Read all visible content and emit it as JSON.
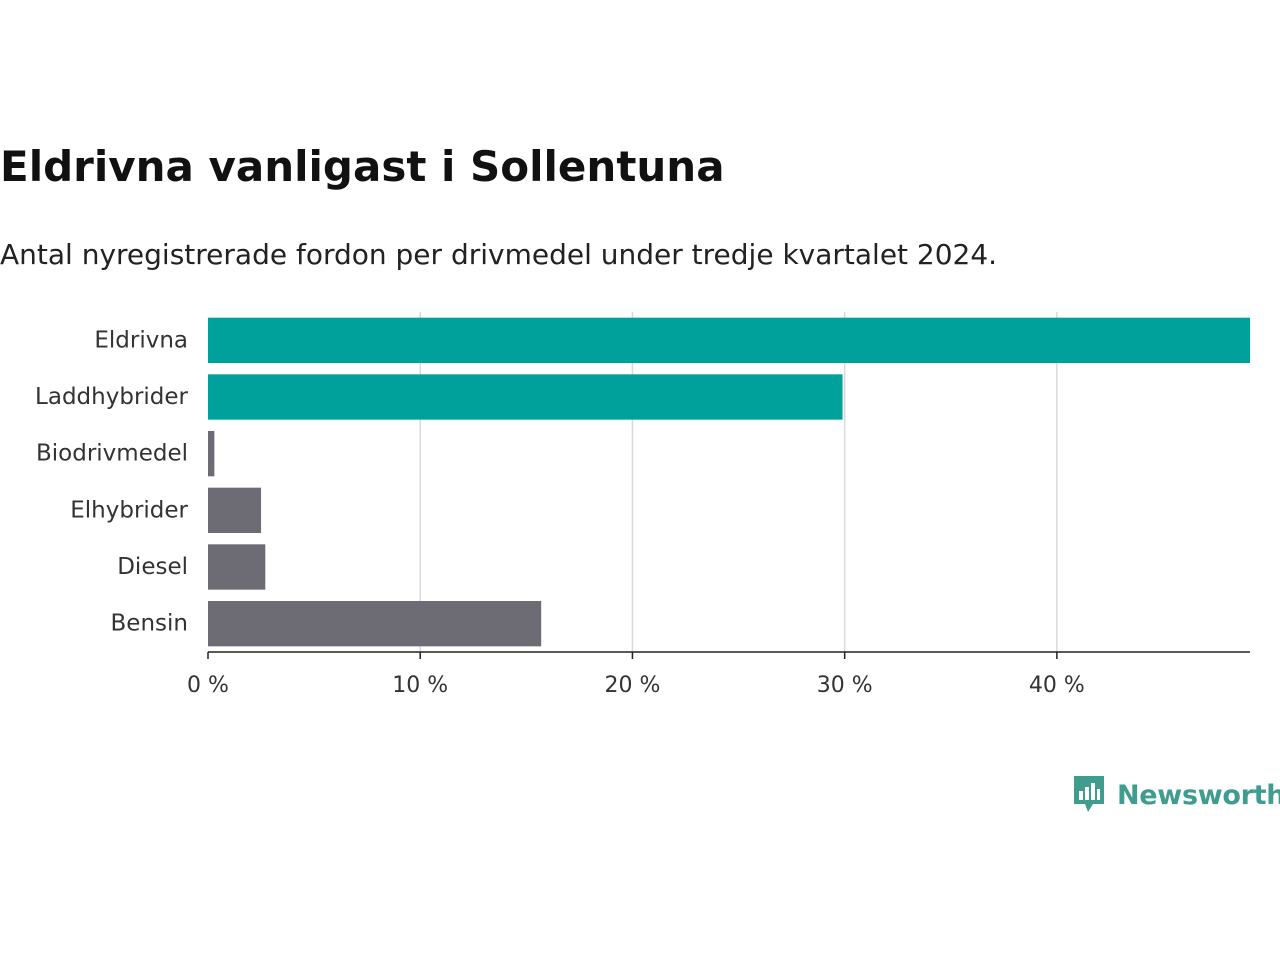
{
  "chart_data": {
    "type": "bar",
    "orientation": "horizontal",
    "title": "Eldrivna vanligast i Sollentuna",
    "subtitle": "Antal nyregistrerade fordon per drivmedel under tredje kvartalet 2024.",
    "categories": [
      "Eldrivna",
      "Laddhybrider",
      "Biodrivmedel",
      "Elhybrider",
      "Diesel",
      "Bensin"
    ],
    "values": [
      49.1,
      29.9,
      0.3,
      2.5,
      2.7,
      15.7
    ],
    "colors": [
      "#00a19a",
      "#00a19a",
      "#6d6c74",
      "#6d6c74",
      "#6d6c74",
      "#6d6c74"
    ],
    "xlim": [
      0,
      49.1
    ],
    "xticks": [
      0,
      10,
      20,
      30,
      40
    ],
    "xtick_labels": [
      "0 %",
      "10 %",
      "20 %",
      "30 %",
      "40 %"
    ],
    "xlabel": "",
    "ylabel": "",
    "grid": "vertical"
  },
  "brand": {
    "name": "Newsworthy",
    "logo_icon": "newsworthy-logo-icon",
    "color": "#3f9c8f"
  }
}
